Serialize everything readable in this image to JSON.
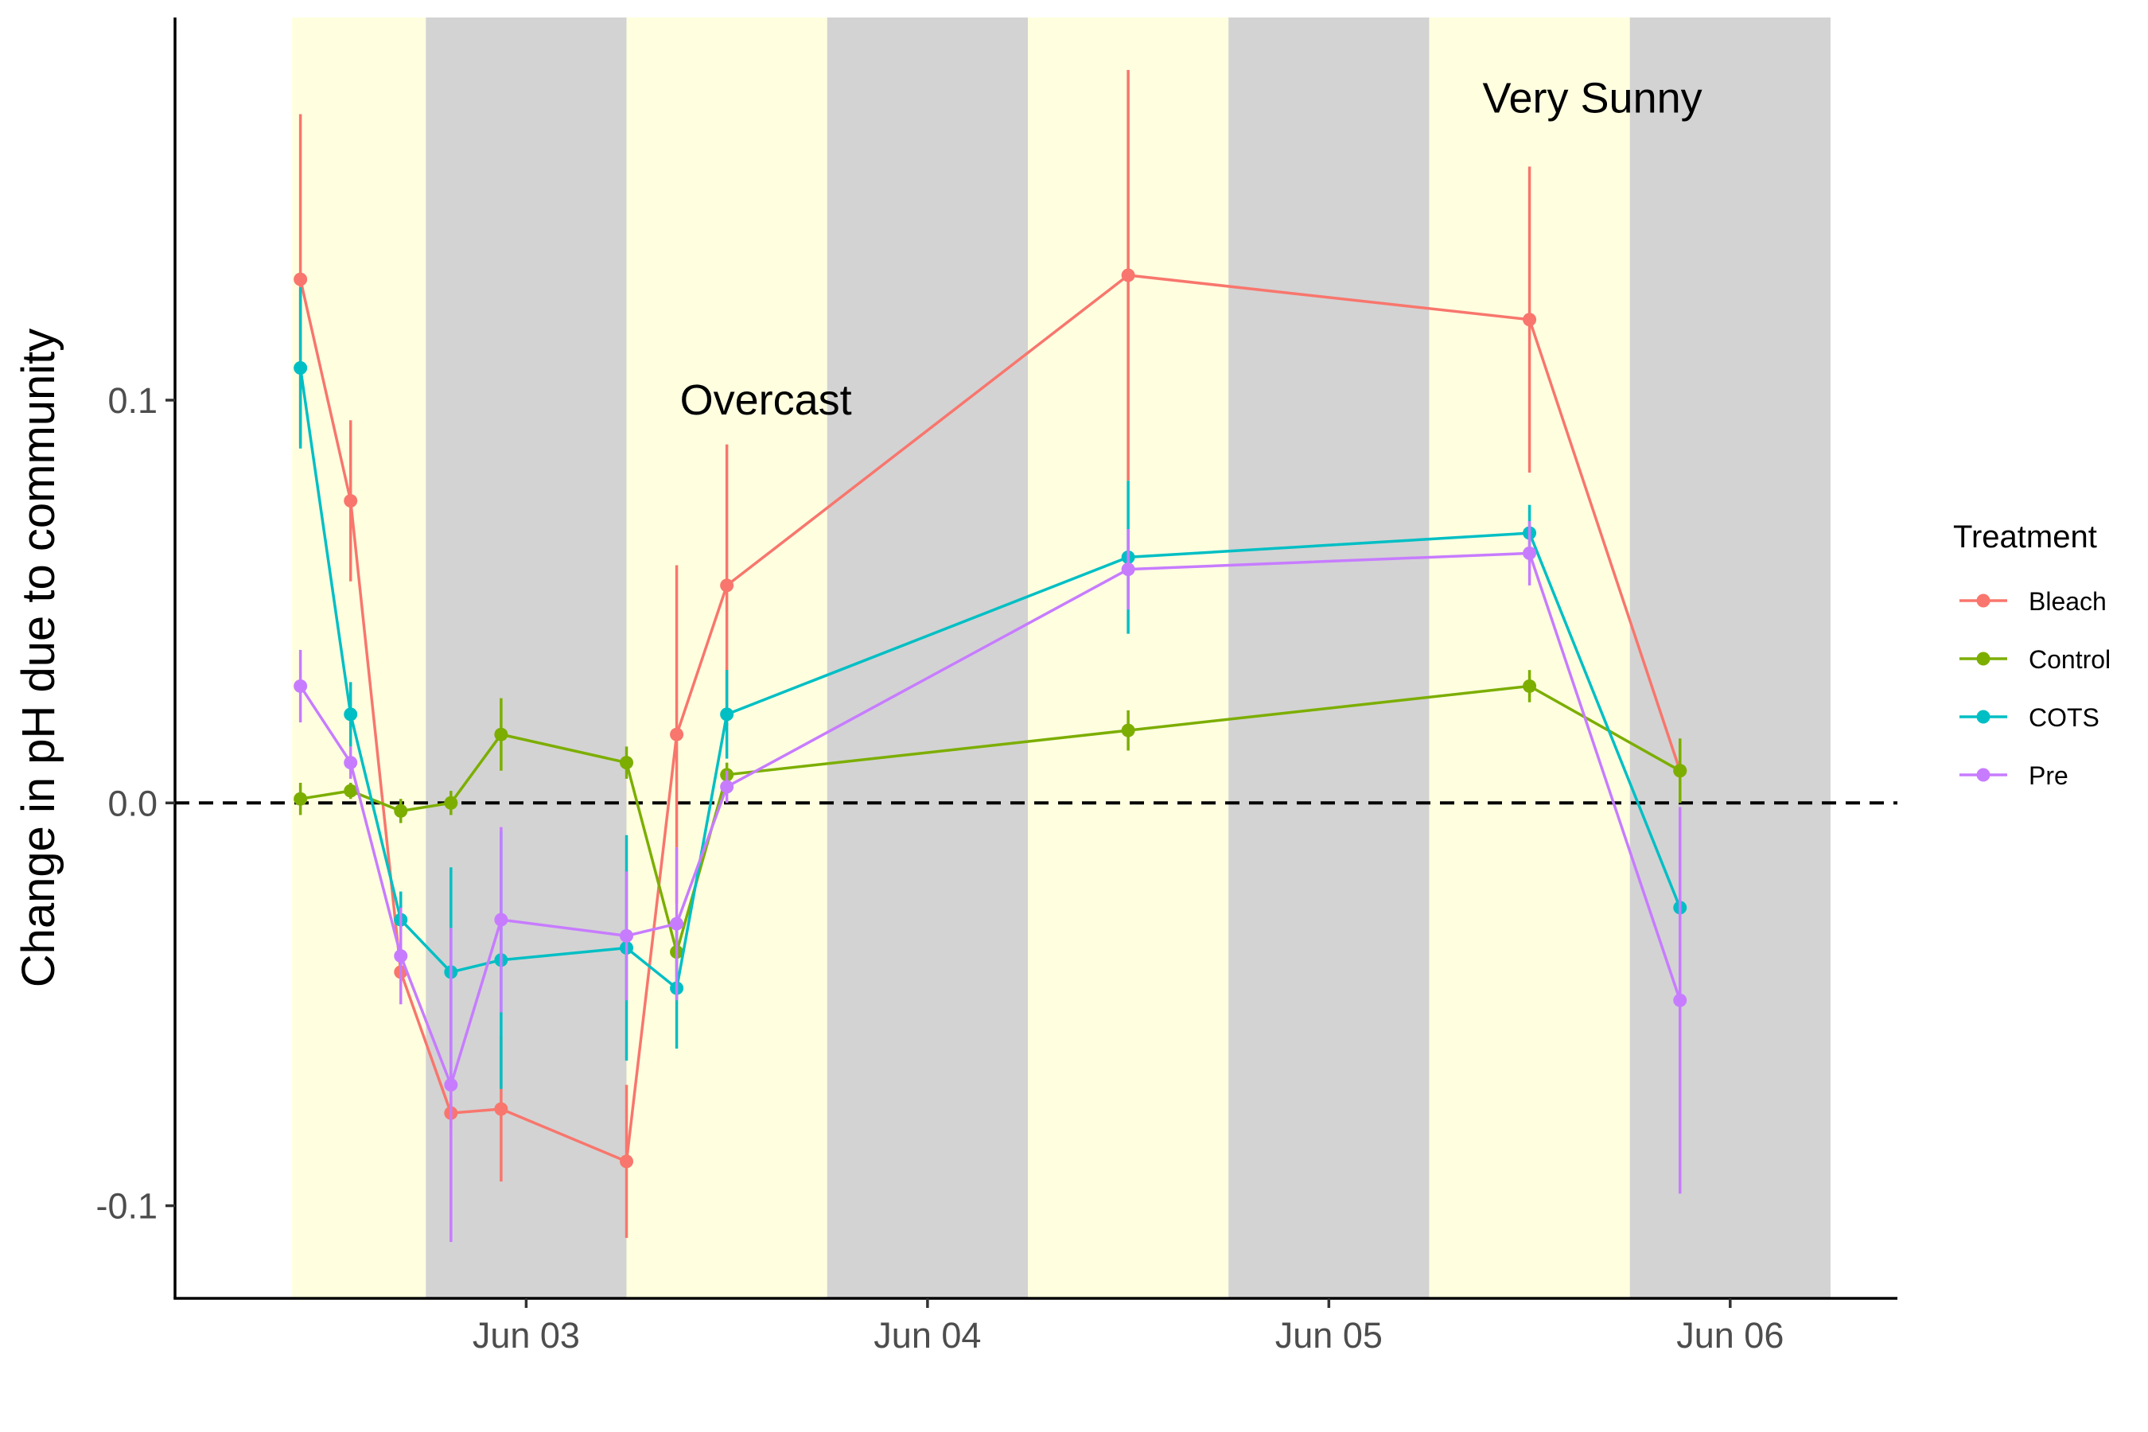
{
  "chart_data": {
    "type": "line",
    "title": "",
    "xlabel": "",
    "ylabel": "Change in pH due to community",
    "x_ticks": [
      "Jun 03",
      "Jun 04",
      "Jun 05",
      "Jun 06"
    ],
    "y_ticks": [
      "-0.1",
      "0.0",
      "0.1"
    ],
    "ylim": [
      -0.123,
      0.195
    ],
    "xlim": [
      "2024-06-02 03:00",
      "2024-06-06 10:00"
    ],
    "x_tick_dates": [
      "2024-06-03 00:00",
      "2024-06-04 00:00",
      "2024-06-05 00:00",
      "2024-06-06 00:00"
    ],
    "reference_line": {
      "y": 0,
      "style": "dashed"
    },
    "grid": false,
    "background_bands": [
      {
        "start": "2024-06-02 10:00",
        "end": "2024-06-02 18:00",
        "period": "day"
      },
      {
        "start": "2024-06-02 18:00",
        "end": "2024-06-03 06:00",
        "period": "night"
      },
      {
        "start": "2024-06-03 06:00",
        "end": "2024-06-03 18:00",
        "period": "day"
      },
      {
        "start": "2024-06-03 18:00",
        "end": "2024-06-04 06:00",
        "period": "night"
      },
      {
        "start": "2024-06-04 06:00",
        "end": "2024-06-04 18:00",
        "period": "day"
      },
      {
        "start": "2024-06-04 18:00",
        "end": "2024-06-05 06:00",
        "period": "night"
      },
      {
        "start": "2024-06-05 06:00",
        "end": "2024-06-05 18:00",
        "period": "day"
      },
      {
        "start": "2024-06-05 18:00",
        "end": "2024-06-06 06:00",
        "period": "night"
      }
    ],
    "band_colors": {
      "day": "#ffffe0",
      "night": "#d3d3d3"
    },
    "annotations": [
      {
        "text": "Overcast",
        "x": "2024-06-03 08:00",
        "y": 0.1
      },
      {
        "text": "Very Sunny",
        "x": "2024-06-05 08:00",
        "y": 0.175
      }
    ],
    "legend": {
      "title": "Treatment",
      "position": "right"
    },
    "series": [
      {
        "name": "Bleach",
        "color": "#F8766D",
        "x": [
          "2024-06-02 10:30",
          "2024-06-02 13:30",
          "2024-06-02 16:30",
          "2024-06-02 19:30",
          "2024-06-02 22:30",
          "2024-06-03 06:00",
          "2024-06-03 09:00",
          "2024-06-03 12:00",
          "2024-06-04 12:00",
          "2024-06-05 12:00",
          "2024-06-05 21:00"
        ],
        "y": [
          0.13,
          0.075,
          -0.042,
          -0.077,
          -0.076,
          -0.089,
          0.017,
          0.054,
          0.131,
          0.12,
          0.008
        ],
        "err": [
          0.041,
          0.02,
          0.004,
          0.004,
          0.018,
          0.019,
          0.042,
          0.035,
          0.051,
          0.038,
          0.004
        ]
      },
      {
        "name": "Control",
        "color": "#7CAE00",
        "x": [
          "2024-06-02 10:30",
          "2024-06-02 13:30",
          "2024-06-02 16:30",
          "2024-06-02 19:30",
          "2024-06-02 22:30",
          "2024-06-03 06:00",
          "2024-06-03 09:00",
          "2024-06-03 12:00",
          "2024-06-04 12:00",
          "2024-06-05 12:00",
          "2024-06-05 21:00"
        ],
        "y": [
          0.001,
          0.003,
          -0.002,
          0.0,
          0.017,
          0.01,
          -0.037,
          0.007,
          0.018,
          0.029,
          0.008
        ],
        "err": [
          0.004,
          0.002,
          0.003,
          0.003,
          0.009,
          0.004,
          0.006,
          0.003,
          0.005,
          0.004,
          0.008
        ]
      },
      {
        "name": "COTS",
        "color": "#00BFC4",
        "x": [
          "2024-06-02 10:30",
          "2024-06-02 13:30",
          "2024-06-02 16:30",
          "2024-06-02 19:30",
          "2024-06-02 22:30",
          "2024-06-03 06:00",
          "2024-06-03 09:00",
          "2024-06-03 12:00",
          "2024-06-04 12:00",
          "2024-06-05 12:00",
          "2024-06-05 21:00"
        ],
        "y": [
          0.108,
          0.022,
          -0.029,
          -0.042,
          -0.039,
          -0.036,
          -0.046,
          0.022,
          0.061,
          0.067,
          -0.026
        ],
        "err": [
          0.02,
          0.008,
          0.007,
          0.026,
          0.032,
          0.028,
          0.015,
          0.011,
          0.019,
          0.007,
          0.005
        ]
      },
      {
        "name": "Pre",
        "color": "#C77CFF",
        "x": [
          "2024-06-02 10:30",
          "2024-06-02 13:30",
          "2024-06-02 16:30",
          "2024-06-02 19:30",
          "2024-06-02 22:30",
          "2024-06-03 06:00",
          "2024-06-03 09:00",
          "2024-06-03 12:00",
          "2024-06-04 12:00",
          "2024-06-05 12:00",
          "2024-06-05 21:00"
        ],
        "y": [
          0.029,
          0.01,
          -0.038,
          -0.07,
          -0.029,
          -0.033,
          -0.03,
          0.004,
          0.058,
          0.062,
          -0.049
        ],
        "err": [
          0.009,
          0.004,
          0.012,
          0.039,
          0.023,
          0.016,
          0.019,
          0.004,
          0.01,
          0.008,
          0.048
        ]
      }
    ]
  }
}
